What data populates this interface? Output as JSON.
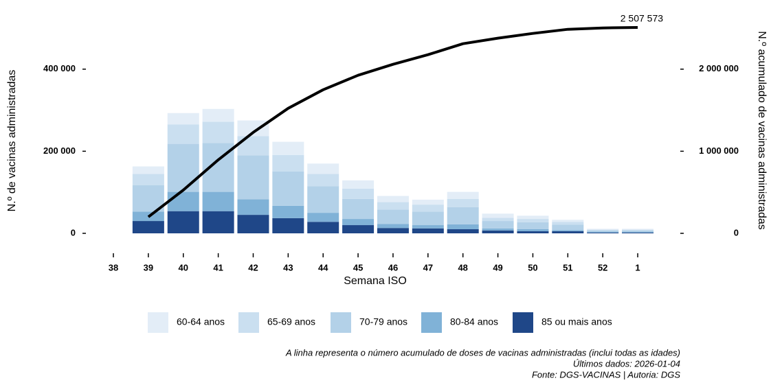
{
  "chart_data": {
    "type": "bar",
    "y_label": "N.º de vacinas administradas",
    "y2_label": "N.º acumulado de vacinas administradas",
    "x_label": "Semana ISO",
    "categories": [
      "38",
      "39",
      "40",
      "41",
      "42",
      "43",
      "44",
      "45",
      "46",
      "47",
      "48",
      "49",
      "50",
      "51",
      "52",
      "1"
    ],
    "stacked": true,
    "series": [
      {
        "name": "60-64 anos",
        "color": "#e3edf7",
        "values": [
          null,
          18000,
          28000,
          31000,
          38000,
          32000,
          25000,
          20000,
          15000,
          12000,
          17000,
          10000,
          8000,
          5000,
          2000,
          2000
        ]
      },
      {
        "name": "65-69 anos",
        "color": "#cadff0",
        "values": [
          null,
          28000,
          47000,
          52000,
          47000,
          40000,
          30000,
          25000,
          18000,
          17000,
          20000,
          8000,
          8000,
          7000,
          2000,
          2000
        ]
      },
      {
        "name": "70-79 anos",
        "color": "#b3d1e8",
        "values": [
          null,
          64000,
          117000,
          119000,
          107000,
          84000,
          65000,
          49000,
          35000,
          33000,
          42000,
          18000,
          17000,
          13000,
          3000,
          3000
        ]
      },
      {
        "name": "80-84 anos",
        "color": "#80b2d7",
        "values": [
          null,
          23000,
          47000,
          47000,
          38000,
          30000,
          22000,
          15000,
          10000,
          8000,
          12000,
          5000,
          5000,
          3000,
          2000,
          2000
        ]
      },
      {
        "name": "85 ou mais anos",
        "color": "#1f4788",
        "values": [
          null,
          30000,
          54000,
          54000,
          45000,
          37000,
          28000,
          20000,
          13000,
          12000,
          10000,
          7000,
          5000,
          5000,
          2000,
          2000
        ]
      }
    ],
    "line": {
      "color": "#000000",
      "axis": "y2",
      "values": [
        null,
        200000,
        527000,
        895000,
        1230000,
        1523000,
        1749000,
        1925000,
        2059000,
        2176000,
        2310000,
        2377000,
        2435000,
        2485000,
        2502000,
        2507573
      ],
      "value_labels": [
        null,
        null,
        null,
        null,
        null,
        null,
        null,
        null,
        null,
        null,
        null,
        null,
        null,
        null,
        null,
        "2 507 573"
      ]
    },
    "ylim": [
      0,
      535000
    ],
    "yticks": [
      0,
      {
        "value": 200000,
        "label": "200 000"
      },
      {
        "value": 400000,
        "label": "400 000"
      }
    ],
    "y2lim": [
      0,
      2675000
    ],
    "y2ticks": [
      0,
      {
        "value": 1000000,
        "label": "1 000 000"
      },
      {
        "value": 2000000,
        "label": "2 000 000"
      }
    ],
    "notes": [
      "A linha representa o número acumulado de doses de vacinas administradas (inclui todas as idades)",
      "Últimos dados: 2026-01-04",
      "Fonte: DGS-VACINAS | Autoria: DGS"
    ]
  }
}
